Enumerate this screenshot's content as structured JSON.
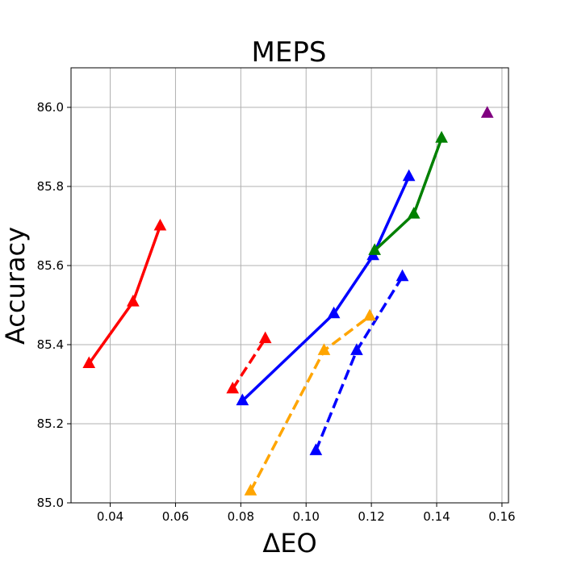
{
  "chart_data": {
    "type": "line",
    "title": "MEPS",
    "xlabel": "ΔEO",
    "ylabel": "Accuracy",
    "xlim": [
      0.028,
      0.162
    ],
    "ylim": [
      85.0,
      86.1
    ],
    "xticks": [
      0.04,
      0.06,
      0.08,
      0.1,
      0.12,
      0.14,
      0.16
    ],
    "xtick_labels": [
      "0.04",
      "0.06",
      "0.08",
      "0.10",
      "0.12",
      "0.14",
      "0.16"
    ],
    "yticks": [
      85.0,
      85.2,
      85.4,
      85.6,
      85.8,
      86.0
    ],
    "ytick_labels": [
      "85.0",
      "85.2",
      "85.4",
      "85.6",
      "85.8",
      "86.0"
    ],
    "grid": true,
    "marker": "triangle",
    "series": [
      {
        "color": "#ff0000",
        "linestyle": "solid",
        "points": [
          [
            0.0335,
            85.352
          ],
          [
            0.047,
            85.508
          ],
          [
            0.0553,
            85.7
          ]
        ]
      },
      {
        "color": "#ff0000",
        "linestyle": "dashed",
        "points": [
          [
            0.0775,
            85.288
          ],
          [
            0.0875,
            85.415
          ]
        ]
      },
      {
        "color": "#0000ff",
        "linestyle": "solid",
        "points": [
          [
            0.0805,
            85.258
          ],
          [
            0.1085,
            85.478
          ],
          [
            0.1205,
            85.625
          ],
          [
            0.1315,
            85.825
          ]
        ]
      },
      {
        "color": "#0000ff",
        "linestyle": "dashed",
        "points": [
          [
            0.103,
            85.132
          ],
          [
            0.1155,
            85.385
          ],
          [
            0.1295,
            85.572
          ]
        ]
      },
      {
        "color": "#ffa500",
        "linestyle": "dashed",
        "points": [
          [
            0.083,
            85.03
          ],
          [
            0.1055,
            85.385
          ],
          [
            0.1195,
            85.472
          ]
        ]
      },
      {
        "color": "#008000",
        "linestyle": "solid",
        "points": [
          [
            0.121,
            85.638
          ],
          [
            0.133,
            85.73
          ],
          [
            0.1415,
            85.922
          ]
        ]
      },
      {
        "color": "#800080",
        "linestyle": "none",
        "points": [
          [
            0.1555,
            85.985
          ]
        ]
      }
    ]
  }
}
